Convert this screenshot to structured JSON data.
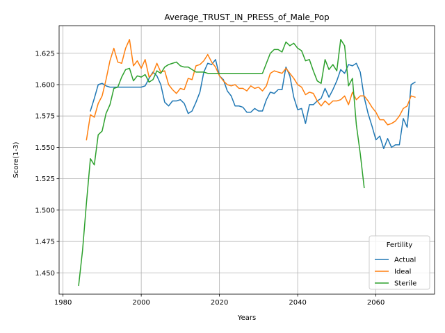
{
  "chart_data": {
    "type": "line",
    "title": "Average_TRUST_IN_PRESS_of_Male_Pop",
    "xlabel": "Years",
    "ylabel": "Score(1-3)",
    "xlim": [
      1979,
      2075
    ],
    "ylim": [
      1.433,
      1.647
    ],
    "xticks": [
      1980,
      2000,
      2020,
      2040,
      2060
    ],
    "yticks": [
      1.45,
      1.475,
      1.5,
      1.525,
      1.55,
      1.575,
      1.6,
      1.625
    ],
    "ytick_labels": [
      "1.450",
      "1.475",
      "1.500",
      "1.525",
      "1.550",
      "1.575",
      "1.600",
      "1.625"
    ],
    "grid": true,
    "legend": {
      "title": "Fertility",
      "placement": "bottom-right"
    },
    "colors": {
      "Actual": "#1f77b4",
      "Ideal": "#ff7f0e",
      "Sterile": "#2ca02c"
    },
    "series": [
      {
        "name": "Actual",
        "x": [
          1987,
          1988,
          1989,
          1990,
          1991,
          1992,
          1993,
          1994,
          1995,
          1996,
          1997,
          1998,
          1999,
          2000,
          2001,
          2002,
          2003,
          2004,
          2005,
          2006,
          2007,
          2008,
          2009,
          2010,
          2011,
          2012,
          2013,
          2014,
          2015,
          2016,
          2017,
          2018,
          2019,
          2020,
          2021,
          2022,
          2023,
          2024,
          2025,
          2026,
          2027,
          2028,
          2029,
          2030,
          2031,
          2032,
          2033,
          2034,
          2035,
          2036,
          2037,
          2038,
          2039,
          2040,
          2041,
          2042,
          2043,
          2044,
          2045,
          2046,
          2047,
          2048,
          2049,
          2050,
          2051,
          2052,
          2053,
          2054,
          2055,
          2056,
          2057,
          2058,
          2059,
          2060,
          2061,
          2062,
          2063,
          2064,
          2065,
          2066,
          2067,
          2068,
          2069,
          2070
        ],
        "y": [
          1.579,
          1.589,
          1.6,
          1.601,
          1.599,
          1.598,
          1.598,
          1.598,
          1.598,
          1.598,
          1.598,
          1.598,
          1.598,
          1.598,
          1.599,
          1.605,
          1.61,
          1.607,
          1.6,
          1.586,
          1.583,
          1.587,
          1.587,
          1.588,
          1.585,
          1.577,
          1.579,
          1.586,
          1.594,
          1.61,
          1.617,
          1.616,
          1.62,
          1.607,
          1.604,
          1.595,
          1.591,
          1.583,
          1.583,
          1.582,
          1.578,
          1.578,
          1.581,
          1.579,
          1.579,
          1.588,
          1.594,
          1.593,
          1.596,
          1.596,
          1.614,
          1.607,
          1.59,
          1.58,
          1.581,
          1.569,
          1.584,
          1.584,
          1.587,
          1.589,
          1.597,
          1.59,
          1.596,
          1.603,
          1.612,
          1.609,
          1.616,
          1.615,
          1.617,
          1.61,
          1.59,
          1.577,
          1.567,
          1.556,
          1.559,
          1.549,
          1.557,
          1.55,
          1.552,
          1.552,
          1.573,
          1.566,
          1.6,
          1.602
        ]
      },
      {
        "name": "Ideal",
        "x": [
          1986,
          1987,
          1988,
          1989,
          1990,
          1991,
          1992,
          1993,
          1994,
          1995,
          1996,
          1997,
          1998,
          1999,
          2000,
          2001,
          2002,
          2003,
          2004,
          2005,
          2006,
          2007,
          2008,
          2009,
          2010,
          2011,
          2012,
          2013,
          2014,
          2015,
          2016,
          2017,
          2018,
          2019,
          2020,
          2021,
          2022,
          2023,
          2024,
          2025,
          2026,
          2027,
          2028,
          2029,
          2030,
          2031,
          2032,
          2033,
          2034,
          2035,
          2036,
          2037,
          2038,
          2039,
          2040,
          2041,
          2042,
          2043,
          2044,
          2045,
          2046,
          2047,
          2048,
          2049,
          2050,
          2051,
          2052,
          2053,
          2054,
          2055,
          2056,
          2057,
          2058,
          2059,
          2060,
          2061,
          2062,
          2063,
          2064,
          2065,
          2066,
          2067,
          2068,
          2069,
          2070
        ],
        "y": [
          1.556,
          1.576,
          1.574,
          1.585,
          1.591,
          1.604,
          1.619,
          1.629,
          1.618,
          1.617,
          1.629,
          1.636,
          1.615,
          1.619,
          1.613,
          1.62,
          1.606,
          1.609,
          1.617,
          1.61,
          1.611,
          1.6,
          1.596,
          1.593,
          1.597,
          1.596,
          1.605,
          1.604,
          1.615,
          1.616,
          1.619,
          1.624,
          1.618,
          1.614,
          1.607,
          1.603,
          1.6,
          1.599,
          1.6,
          1.597,
          1.597,
          1.595,
          1.599,
          1.597,
          1.598,
          1.595,
          1.599,
          1.609,
          1.611,
          1.61,
          1.609,
          1.613,
          1.609,
          1.605,
          1.6,
          1.598,
          1.592,
          1.594,
          1.593,
          1.587,
          1.583,
          1.587,
          1.584,
          1.587,
          1.587,
          1.588,
          1.591,
          1.584,
          1.594,
          1.588,
          1.591,
          1.591,
          1.587,
          1.582,
          1.578,
          1.572,
          1.572,
          1.568,
          1.569,
          1.571,
          1.575,
          1.581,
          1.583,
          1.591,
          1.59
        ]
      },
      {
        "name": "Sterile",
        "x": [
          1984,
          1985,
          1986,
          1987,
          1988,
          1989,
          1990,
          1991,
          1992,
          1993,
          1994,
          1995,
          1996,
          1997,
          1998,
          1999,
          2000,
          2001,
          2002,
          2003,
          2004,
          2005,
          2006,
          2007,
          2008,
          2009,
          2010,
          2011,
          2012,
          2013,
          2014,
          2015,
          2016,
          2017,
          2018,
          2019,
          2020,
          2021,
          2022,
          2023,
          2024,
          2025,
          2026,
          2027,
          2028,
          2029,
          2030,
          2031,
          2032,
          2033,
          2034,
          2035,
          2036,
          2037,
          2038,
          2039,
          2040,
          2041,
          2042,
          2043,
          2044,
          2045,
          2046,
          2047,
          2048,
          2049,
          2050,
          2051,
          2052,
          2053,
          2054,
          2055,
          2056,
          2057
        ],
        "y": [
          1.44,
          1.468,
          1.506,
          1.541,
          1.536,
          1.56,
          1.563,
          1.577,
          1.584,
          1.597,
          1.598,
          1.606,
          1.612,
          1.613,
          1.603,
          1.607,
          1.606,
          1.608,
          1.602,
          1.604,
          1.611,
          1.609,
          1.614,
          1.616,
          1.617,
          1.618,
          1.615,
          1.614,
          1.614,
          1.612,
          1.61,
          1.61,
          1.61,
          1.609,
          1.609,
          1.609,
          1.609,
          1.609,
          1.609,
          1.609,
          1.609,
          1.609,
          1.609,
          1.609,
          1.609,
          1.609,
          1.609,
          1.609,
          1.617,
          1.625,
          1.628,
          1.628,
          1.626,
          1.634,
          1.631,
          1.633,
          1.629,
          1.627,
          1.619,
          1.62,
          1.611,
          1.603,
          1.601,
          1.62,
          1.612,
          1.616,
          1.611,
          1.636,
          1.631,
          1.599,
          1.605,
          1.568,
          1.545,
          1.518
        ]
      }
    ]
  }
}
